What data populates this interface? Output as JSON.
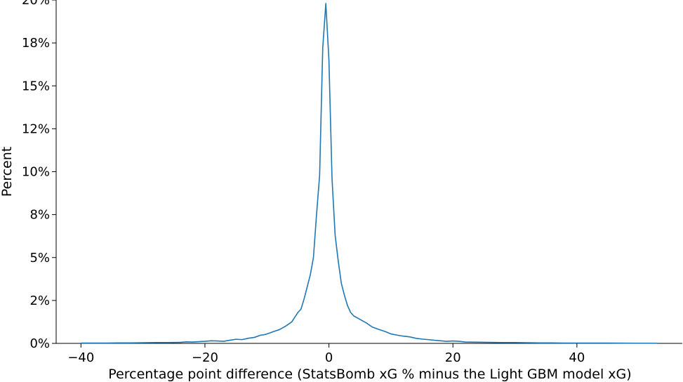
{
  "chart_data": {
    "type": "line",
    "title": "",
    "xlabel": "Percentage point difference (StatsBomb xG % minus the Light GBM model xG)",
    "ylabel": "Percent",
    "xlim": [
      -44,
      57
    ],
    "ylim": [
      0,
      20
    ],
    "xticks": [
      -40,
      -20,
      0,
      20,
      40
    ],
    "xtick_labels": [
      "−40",
      "−20",
      "0",
      "20",
      "40"
    ],
    "yticks": [
      0,
      2.5,
      5,
      7.5,
      10,
      12.5,
      15,
      17.5,
      20
    ],
    "ytick_labels": [
      "0%",
      "2%",
      "5%",
      "8%",
      "10%",
      "12%",
      "15%",
      "18%",
      "20%"
    ],
    "grid": false,
    "line_color": "#1f77b4",
    "series": [
      {
        "x": [
          -40,
          -38,
          -36,
          -34,
          -32,
          -30,
          -28,
          -26,
          -24,
          -23,
          -22,
          -21,
          -20,
          -19,
          -18,
          -17,
          -16,
          -15,
          -14,
          -13,
          -12,
          -11,
          -10.5,
          -10,
          -9,
          -8,
          -7,
          -6,
          -5,
          -4.5,
          -4,
          -3.5,
          -3,
          -2.5,
          -2,
          -1.5,
          -1,
          -0.5,
          0,
          0.5,
          1,
          1.5,
          2,
          2.5,
          3,
          3.5,
          4,
          5,
          6,
          7,
          8,
          9,
          10,
          11,
          12,
          13,
          14,
          15,
          16,
          17,
          18,
          19,
          20,
          21,
          22,
          24,
          26,
          28,
          30,
          32,
          34,
          36,
          38,
          40,
          45,
          50,
          53
        ],
        "y": [
          0.02,
          0.02,
          0.02,
          0.03,
          0.03,
          0.04,
          0.05,
          0.05,
          0.06,
          0.09,
          0.08,
          0.1,
          0.12,
          0.15,
          0.14,
          0.12,
          0.18,
          0.24,
          0.22,
          0.3,
          0.35,
          0.48,
          0.5,
          0.55,
          0.68,
          0.8,
          1.0,
          1.25,
          1.8,
          2.0,
          2.6,
          3.3,
          4.0,
          5.0,
          7.5,
          9.8,
          17.2,
          19.8,
          16.5,
          9.6,
          6.3,
          4.8,
          3.5,
          2.8,
          2.2,
          1.8,
          1.6,
          1.4,
          1.2,
          0.95,
          0.82,
          0.7,
          0.55,
          0.48,
          0.42,
          0.38,
          0.3,
          0.25,
          0.22,
          0.18,
          0.15,
          0.12,
          0.14,
          0.12,
          0.08,
          0.07,
          0.06,
          0.05,
          0.05,
          0.04,
          0.03,
          0.03,
          0.02,
          0.02,
          0.02,
          0.01,
          0.01
        ]
      }
    ]
  }
}
